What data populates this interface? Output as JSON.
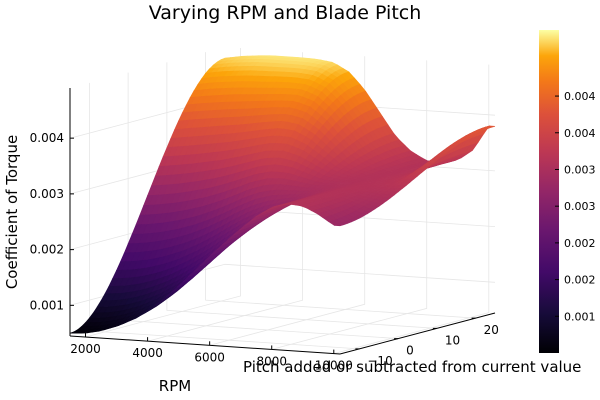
{
  "chart_data": {
    "type": "surface",
    "title": "Varying RPM and Blade Pitch",
    "xlabel": "RPM",
    "ylabel": "Pitch added or subtracted from current value",
    "zlabel": "Coefficient of Torque",
    "x_ticks": [
      "2000",
      "4000",
      "6000",
      "8000",
      "10000"
    ],
    "y_ticks": [
      "−10",
      "0",
      "10",
      "20"
    ],
    "z_ticks": [
      "0.001",
      "0.002",
      "0.003",
      "0.004"
    ],
    "colorbar_ticks": [
      "0.001",
      "0.002",
      "0.002",
      "0.003",
      "0.003",
      "0.004",
      "0.004"
    ],
    "xlim": [
      1500,
      10200
    ],
    "ylim": [
      -15,
      25
    ],
    "zlim": [
      0.00045,
      0.0049
    ],
    "colormap": "inferno",
    "profile": {
      "x": [
        1500,
        2000,
        2500,
        3000,
        3500,
        4000,
        4500,
        5000,
        5500,
        6000,
        6500,
        7000,
        7500,
        8000,
        8500,
        9000,
        9500,
        10000
      ],
      "z_front": [
        0.0005,
        0.00052,
        0.00058,
        0.00068,
        0.00082,
        0.001,
        0.00122,
        0.00148,
        0.00176,
        0.00205,
        0.00232,
        0.00258,
        0.00282,
        0.003,
        0.00308,
        0.00306,
        0.00293,
        0.00275
      ],
      "z_back": [
        0.0047,
        0.00475,
        0.00478,
        0.0048,
        0.0048,
        0.0048,
        0.00479,
        0.00475,
        0.0046,
        0.0043,
        0.0039,
        0.0035,
        0.00325,
        0.0031,
        0.0031,
        0.00315,
        0.00335,
        0.0038
      ]
    },
    "grid": true,
    "legend": "none"
  }
}
